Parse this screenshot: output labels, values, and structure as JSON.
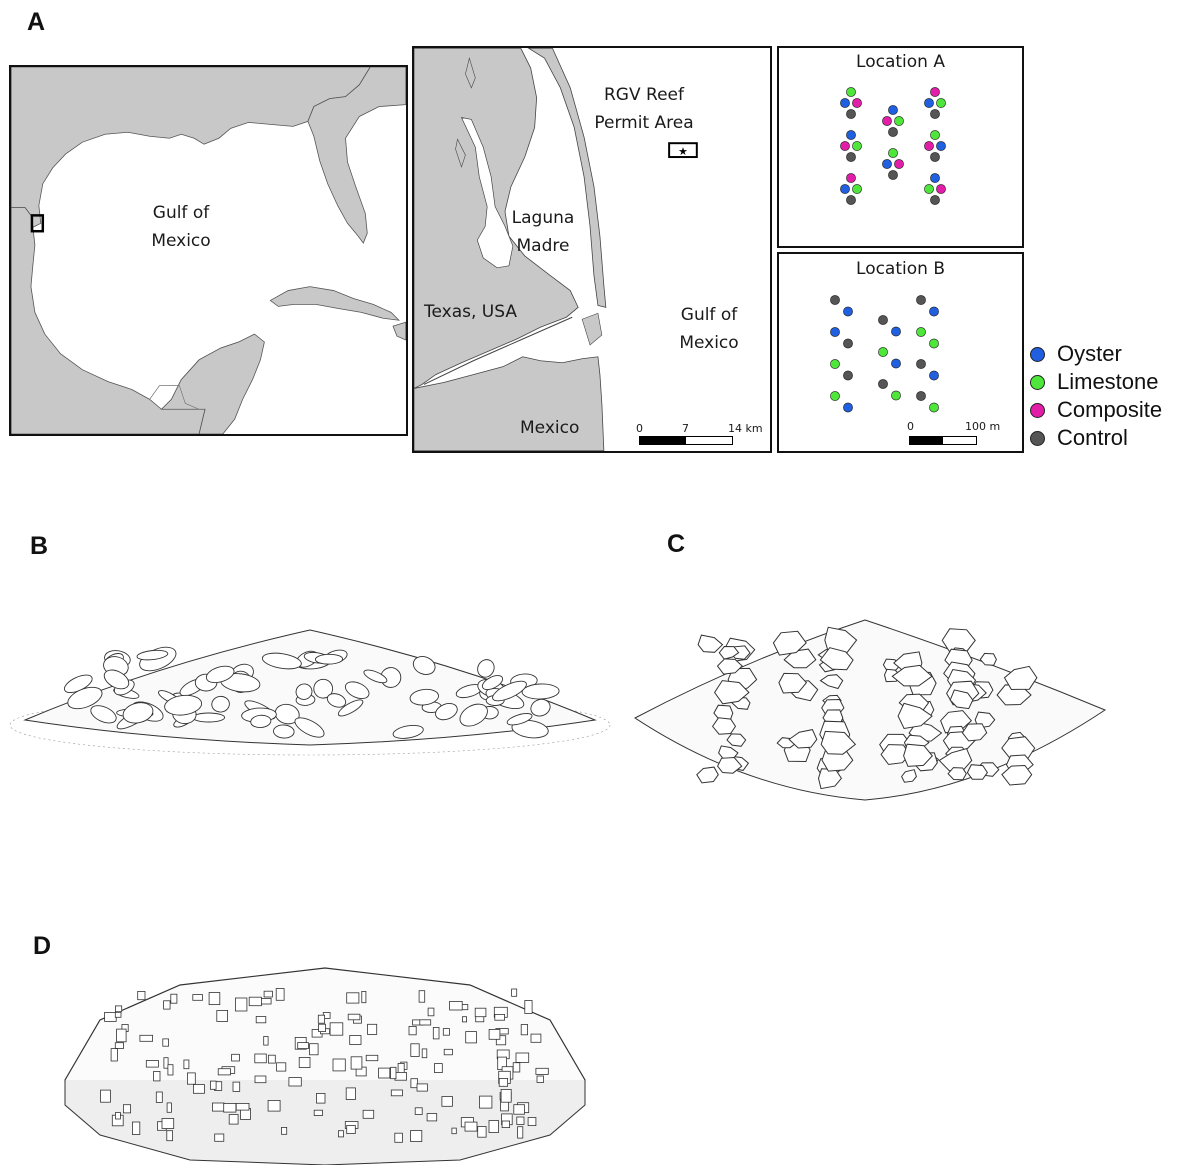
{
  "panels": {
    "a": "A",
    "b": "B",
    "c": "C",
    "d": "D"
  },
  "map_overview": {
    "label_line1": "Gulf of",
    "label_line2": "Mexico"
  },
  "map_detail": {
    "permit_line1": "RGV Reef",
    "permit_line2": "Permit Area",
    "laguna_line1": "Laguna",
    "laguna_line2": "Madre",
    "texas": "Texas, USA",
    "gulf_line1": "Gulf of",
    "gulf_line2": "Mexico",
    "mexico": "Mexico",
    "scale": {
      "t0": "0",
      "t1": "7",
      "t2": "14 km"
    }
  },
  "location_a": {
    "title": "Location A"
  },
  "location_b": {
    "title": "Location B",
    "scale": {
      "t0": "0",
      "t1": "100 m"
    }
  },
  "legend": [
    {
      "label": "Oyster",
      "color": "#1f5fe0"
    },
    {
      "label": "Limestone",
      "color": "#4ee63a"
    },
    {
      "label": "Composite",
      "color": "#e21ea8"
    },
    {
      "label": "Control",
      "color": "#555555"
    }
  ],
  "colors": {
    "land": "#c8c8c8",
    "water": "#ffffff"
  },
  "location_a_sites": [
    [
      "limestone",
      "oyster",
      "composite",
      "control",
      "oyster",
      "composite",
      "limestone",
      "control",
      "composite",
      "oyster",
      "limestone",
      "control"
    ],
    [
      "oyster",
      "composite",
      "limestone",
      "control",
      "limestone",
      "oyster",
      "composite",
      "control"
    ],
    [
      "composite",
      "oyster",
      "limestone",
      "control",
      "limestone",
      "composite",
      "oyster",
      "control",
      "oyster",
      "limestone",
      "composite",
      "control"
    ]
  ],
  "location_b_sites": [
    [
      "control",
      "oyster",
      "oyster",
      "control",
      "limestone",
      "control",
      "limestone",
      "oyster"
    ],
    [
      "control",
      "oyster",
      "limestone",
      "oyster",
      "control",
      "limestone"
    ],
    [
      "control",
      "oyster",
      "limestone",
      "limestone",
      "control",
      "oyster",
      "control",
      "limestone"
    ]
  ]
}
